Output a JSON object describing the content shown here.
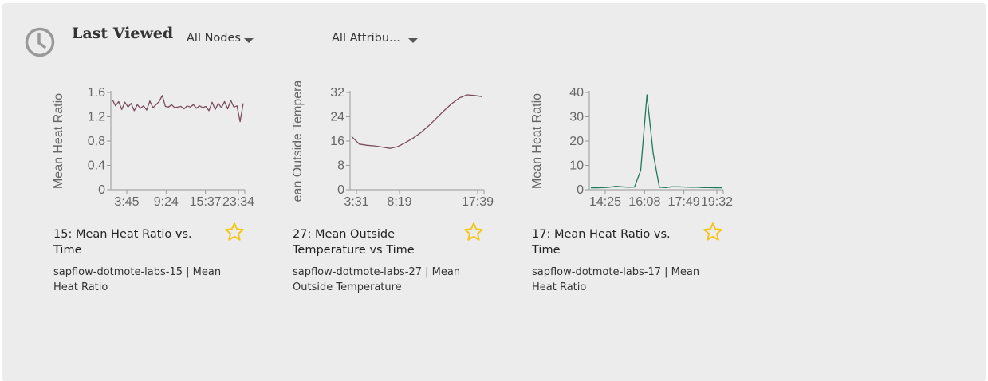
{
  "header": {
    "title": "Last Viewed",
    "node_filter": "All Nodes",
    "attribute_filter": "All Attribu..."
  },
  "colors": {
    "accent_star": "#f5c518",
    "series_1": "#7b4a5e",
    "series_2": "#7b4a5e",
    "series_3": "#1f7a58"
  },
  "cards": [
    {
      "title": "15: Mean Heat Ratio vs. Time",
      "subtitle": "sapflow-dotmote-labs-15 | Mean Heat Ratio",
      "chart_data": {
        "type": "line",
        "ylabel": "Mean Heat Ratio",
        "ylim": [
          0,
          1.6
        ],
        "yticks": [
          "0",
          "0.4",
          "0.8",
          "1.2",
          "1.6"
        ],
        "xticks": [
          "3:45",
          "9:24",
          "15:37",
          "23:34"
        ],
        "values": [
          1.48,
          1.38,
          1.45,
          1.32,
          1.44,
          1.36,
          1.42,
          1.3,
          1.4,
          1.34,
          1.38,
          1.31,
          1.46,
          1.35,
          1.4,
          1.45,
          1.55,
          1.37,
          1.36,
          1.4,
          1.35,
          1.36,
          1.37,
          1.33,
          1.38,
          1.36,
          1.4,
          1.34,
          1.38,
          1.35,
          1.37,
          1.3,
          1.44,
          1.32,
          1.42,
          1.35,
          1.45,
          1.33,
          1.47,
          1.36,
          1.38,
          1.12,
          1.42
        ]
      }
    },
    {
      "title": "27: Mean Outside Temperature vs Time",
      "subtitle": "sapflow-dotmote-labs-27 | Mean Outside Temperature",
      "chart_data": {
        "type": "line",
        "ylabel": "ean Outside Tempera",
        "ylim": [
          0,
          32
        ],
        "yticks": [
          "0",
          "8",
          "16",
          "24",
          "32"
        ],
        "xticks": [
          "3:31",
          "8:19",
          "17:39"
        ],
        "values": [
          17.5,
          15.0,
          14.6,
          14.4,
          14.0,
          13.6,
          14.2,
          15.5,
          17.0,
          18.8,
          21.0,
          23.5,
          26.0,
          28.3,
          30.2,
          31.2,
          31.0,
          30.6
        ]
      }
    },
    {
      "title": "17: Mean Heat Ratio vs. Time",
      "subtitle": "sapflow-dotmote-labs-17 | Mean Heat Ratio",
      "chart_data": {
        "type": "line",
        "ylabel": "Mean Heat Ratio",
        "ylim": [
          0,
          40
        ],
        "yticks": [
          "0",
          "10",
          "20",
          "30",
          "40"
        ],
        "xticks": [
          "14:25",
          "16:08",
          "17:49",
          "19:32"
        ],
        "values": [
          0.8,
          0.8,
          0.9,
          1.0,
          1.4,
          1.2,
          1.0,
          1.1,
          8,
          39,
          15,
          1.0,
          0.9,
          1.2,
          1.2,
          1.1,
          1.0,
          1.0,
          0.9,
          0.9,
          0.8,
          0.8
        ]
      }
    }
  ]
}
